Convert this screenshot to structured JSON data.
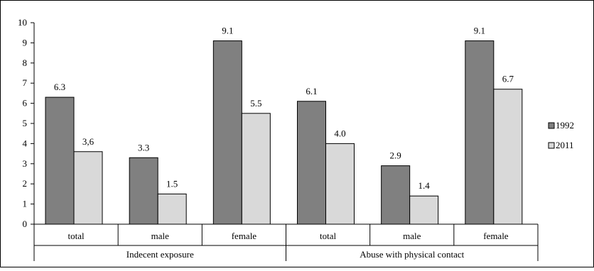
{
  "chart_data": {
    "type": "bar",
    "ylim": [
      0,
      10
    ],
    "y_ticks": [
      "0",
      "1",
      "2",
      "3",
      "4",
      "5",
      "6",
      "7",
      "8",
      "9",
      "10"
    ],
    "categories": [
      "total",
      "male",
      "female",
      "total",
      "male",
      "female"
    ],
    "groups": [
      "Indecent exposure",
      "Abuse with physical contact"
    ],
    "series": [
      {
        "name": "1992",
        "color": "#808080",
        "values": [
          6.3,
          3.3,
          9.1,
          6.1,
          2.9,
          9.1
        ],
        "labels": [
          "6.3",
          "3.3",
          "9.1",
          "6.1",
          "2.9",
          "9.1"
        ]
      },
      {
        "name": "2011",
        "color": "#d9d9d9",
        "values": [
          3.6,
          1.5,
          5.5,
          4.0,
          1.4,
          6.7
        ],
        "labels": [
          "3,6",
          "1.5",
          "5.5",
          "4.0",
          "1.4",
          "6.7"
        ]
      }
    ],
    "legend_position": "right",
    "grid": false
  }
}
